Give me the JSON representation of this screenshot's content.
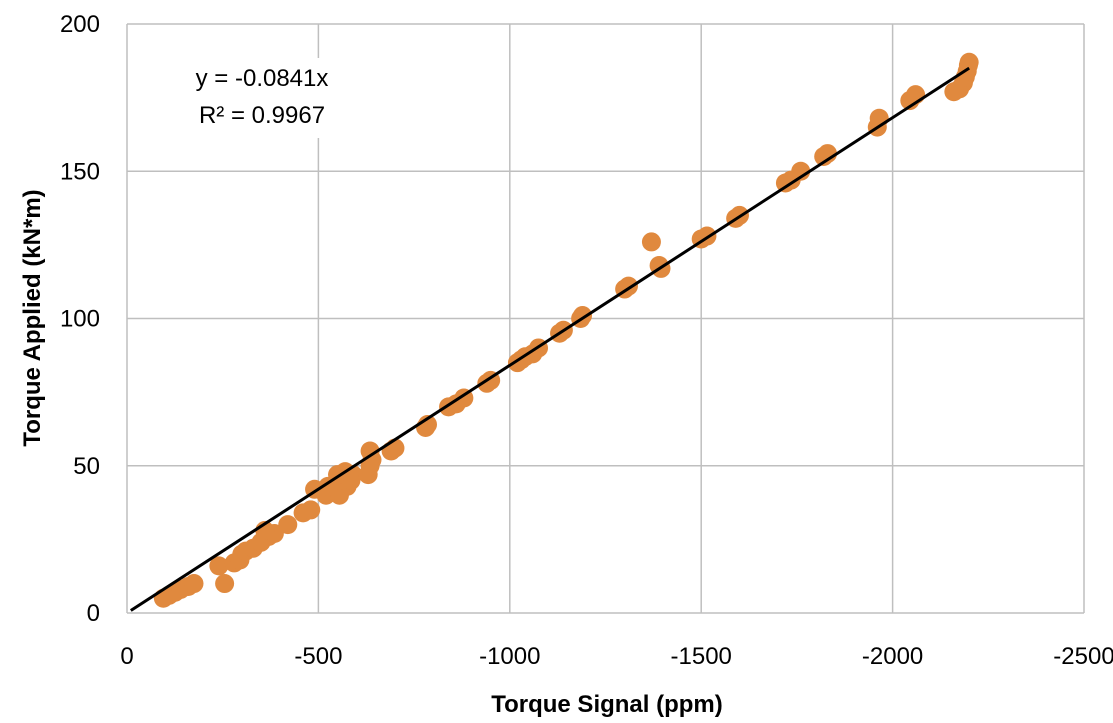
{
  "chart_data": {
    "type": "scatter",
    "title": "",
    "xlabel": "Torque Signal (ppm)",
    "ylabel": "Torque Applied (kN*m)",
    "xlim": [
      0,
      -2500
    ],
    "ylim": [
      0,
      200
    ],
    "x_ticks": [
      0,
      -500,
      -1000,
      -1500,
      -2000,
      -2500
    ],
    "y_ticks": [
      0,
      50,
      100,
      150,
      200
    ],
    "grid": true,
    "legend": "none",
    "marker_color": "#E0893E",
    "trendline_color": "#000000",
    "trendline": {
      "slope": -0.0841,
      "x_range": [
        -10,
        -2200
      ]
    },
    "annotations": [
      "y = -0.0841x",
      "R² = 0.9967"
    ],
    "points": [
      [
        -95,
        5
      ],
      [
        -110,
        6
      ],
      [
        -125,
        7
      ],
      [
        -140,
        8
      ],
      [
        -160,
        9
      ],
      [
        -175,
        10
      ],
      [
        -255,
        10
      ],
      [
        -240,
        16
      ],
      [
        -280,
        17
      ],
      [
        -295,
        18
      ],
      [
        -300,
        20
      ],
      [
        -310,
        21
      ],
      [
        -330,
        22
      ],
      [
        -350,
        24
      ],
      [
        -370,
        26
      ],
      [
        -385,
        27
      ],
      [
        -360,
        28
      ],
      [
        -420,
        30
      ],
      [
        -460,
        34
      ],
      [
        -480,
        35
      ],
      [
        -490,
        42
      ],
      [
        -520,
        40
      ],
      [
        -540,
        41
      ],
      [
        -555,
        40
      ],
      [
        -575,
        43
      ],
      [
        -585,
        45
      ],
      [
        -555,
        45
      ],
      [
        -525,
        43
      ],
      [
        -550,
        47
      ],
      [
        -570,
        48
      ],
      [
        -590,
        47
      ],
      [
        -630,
        47
      ],
      [
        -635,
        50
      ],
      [
        -640,
        52
      ],
      [
        -635,
        55
      ],
      [
        -690,
        55
      ],
      [
        -700,
        56
      ],
      [
        -780,
        63
      ],
      [
        -785,
        64
      ],
      [
        -840,
        70
      ],
      [
        -860,
        71
      ],
      [
        -880,
        73
      ],
      [
        -940,
        78
      ],
      [
        -950,
        79
      ],
      [
        -1020,
        85
      ],
      [
        -1030,
        86
      ],
      [
        -1040,
        87
      ],
      [
        -1060,
        88
      ],
      [
        -1075,
        90
      ],
      [
        -1130,
        95
      ],
      [
        -1140,
        96
      ],
      [
        -1185,
        100
      ],
      [
        -1190,
        101
      ],
      [
        -1300,
        110
      ],
      [
        -1310,
        111
      ],
      [
        -1370,
        126
      ],
      [
        -1390,
        118
      ],
      [
        -1395,
        117
      ],
      [
        -1500,
        127
      ],
      [
        -1515,
        128
      ],
      [
        -1590,
        134
      ],
      [
        -1600,
        135
      ],
      [
        -1720,
        146
      ],
      [
        -1735,
        147
      ],
      [
        -1760,
        150
      ],
      [
        -1820,
        155
      ],
      [
        -1830,
        156
      ],
      [
        -1960,
        165
      ],
      [
        -1965,
        168
      ],
      [
        -2045,
        174
      ],
      [
        -2060,
        176
      ],
      [
        -2160,
        177
      ],
      [
        -2175,
        178
      ],
      [
        -2185,
        180
      ],
      [
        -2190,
        182
      ],
      [
        -2195,
        184
      ],
      [
        -2198,
        186
      ],
      [
        -2200,
        187
      ]
    ]
  }
}
